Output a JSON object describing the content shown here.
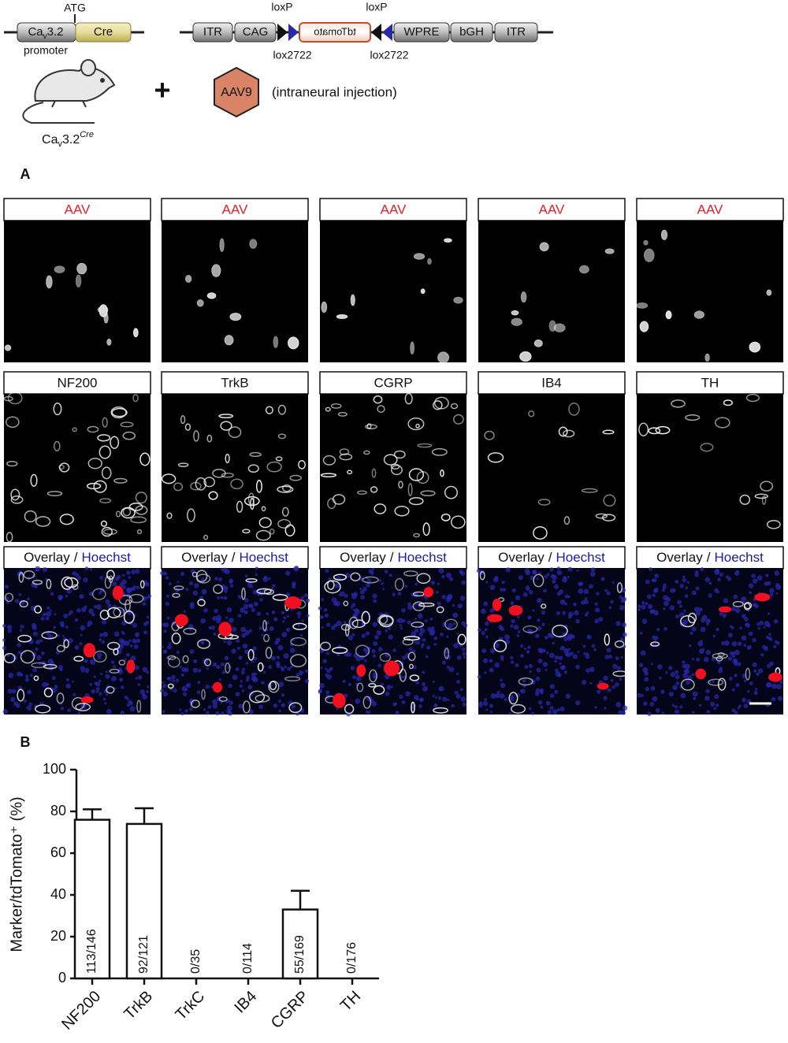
{
  "schematic": {
    "construct1": {
      "atg": "ATG",
      "promoter_box": {
        "main": "Ca",
        "sub": "v",
        "rest": "3.2"
      },
      "cre": "Cre",
      "promoter": "promoter"
    },
    "mouse_label": {
      "main": "Ca",
      "sub": "v",
      "rest": "3.2",
      "sup": "Cre"
    },
    "plus": "+",
    "construct2": {
      "boxes": [
        "ITR",
        "CAG",
        "tdTomato",
        "WPRE",
        "bGH",
        "ITR"
      ],
      "loxp": [
        "loxP",
        "loxP"
      ],
      "lox2722": [
        "lox2722",
        "lox2722"
      ]
    },
    "aav": "AAV9",
    "injection": "(intraneural injection)"
  },
  "panel_a": {
    "label": "A",
    "rows": [
      [
        "AAV",
        "AAV",
        "AAV",
        "AAV",
        "AAV"
      ],
      [
        "NF200",
        "TrkB",
        "CGRP",
        "IB4",
        "TH"
      ],
      [
        {
          "overlay": "Overlay",
          "separator": "/",
          "hoechst": "Hoechst"
        },
        {
          "overlay": "Overlay",
          "separator": "/",
          "hoechst": "Hoechst"
        },
        {
          "overlay": "Overlay",
          "separator": "/",
          "hoechst": "Hoechst"
        },
        {
          "overlay": "Overlay",
          "separator": "/",
          "hoechst": "Hoechst"
        },
        {
          "overlay": "Overlay",
          "separator": "/",
          "hoechst": "Hoechst"
        }
      ]
    ]
  },
  "panel_b": {
    "label": "B",
    "chart_data": {
      "type": "bar",
      "ylabel": "Marker/tdTomato⁺ (%)",
      "categories": [
        "NF200",
        "TrkB",
        "TrkC",
        "IB4",
        "CGRP",
        "TH"
      ],
      "values": [
        76,
        74,
        0,
        0,
        33,
        0
      ],
      "errors": [
        5,
        7.5,
        0,
        0,
        9,
        0
      ],
      "bar_labels": [
        "113/146",
        "92/121",
        "0/35",
        "0/114",
        "55/169",
        "0/176"
      ],
      "color": "#ffffff",
      "ylim": [
        0,
        100
      ],
      "yticks": [
        0,
        20,
        40,
        60,
        80,
        100
      ]
    }
  }
}
